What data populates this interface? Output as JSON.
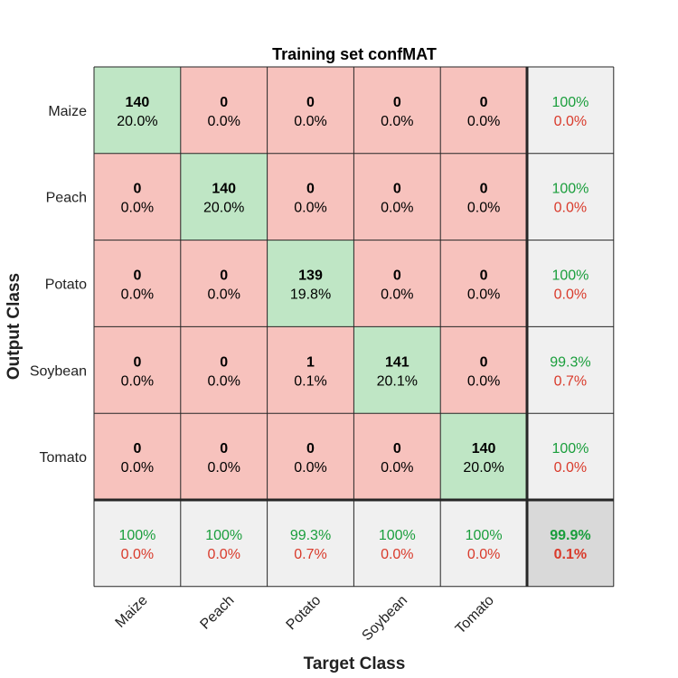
{
  "chart_data": {
    "type": "heatmap",
    "title": "Training set confMAT",
    "xlabel": "Target Class",
    "ylabel": "Output Class",
    "classes": [
      "Maize",
      "Peach",
      "Potato",
      "Soybean",
      "Tomato"
    ],
    "counts": [
      [
        140,
        0,
        0,
        0,
        0
      ],
      [
        0,
        140,
        0,
        0,
        0
      ],
      [
        0,
        0,
        139,
        0,
        0
      ],
      [
        0,
        0,
        1,
        141,
        0
      ],
      [
        0,
        0,
        0,
        0,
        140
      ]
    ],
    "percents": [
      [
        "20.0%",
        "0.0%",
        "0.0%",
        "0.0%",
        "0.0%"
      ],
      [
        "0.0%",
        "20.0%",
        "0.0%",
        "0.0%",
        "0.0%"
      ],
      [
        "0.0%",
        "0.0%",
        "19.8%",
        "0.0%",
        "0.0%"
      ],
      [
        "0.0%",
        "0.0%",
        "0.1%",
        "20.1%",
        "0.0%"
      ],
      [
        "0.0%",
        "0.0%",
        "0.0%",
        "0.0%",
        "20.0%"
      ]
    ],
    "row_summary": [
      {
        "correct": "100%",
        "wrong": "0.0%"
      },
      {
        "correct": "100%",
        "wrong": "0.0%"
      },
      {
        "correct": "100%",
        "wrong": "0.0%"
      },
      {
        "correct": "99.3%",
        "wrong": "0.7%"
      },
      {
        "correct": "100%",
        "wrong": "0.0%"
      }
    ],
    "col_summary": [
      {
        "correct": "100%",
        "wrong": "0.0%"
      },
      {
        "correct": "100%",
        "wrong": "0.0%"
      },
      {
        "correct": "99.3%",
        "wrong": "0.7%"
      },
      {
        "correct": "100%",
        "wrong": "0.0%"
      },
      {
        "correct": "100%",
        "wrong": "0.0%"
      }
    ],
    "overall": {
      "correct": "99.9%",
      "wrong": "0.1%"
    },
    "colors": {
      "diagonal": "#bfe6c5",
      "off_diagonal": "#f7c2bd",
      "summary": "#f0f0f0",
      "overall": "#d9d9d9",
      "correct_text": "#1a9e3c",
      "wrong_text": "#d93a2b",
      "grid": "#262626"
    }
  }
}
